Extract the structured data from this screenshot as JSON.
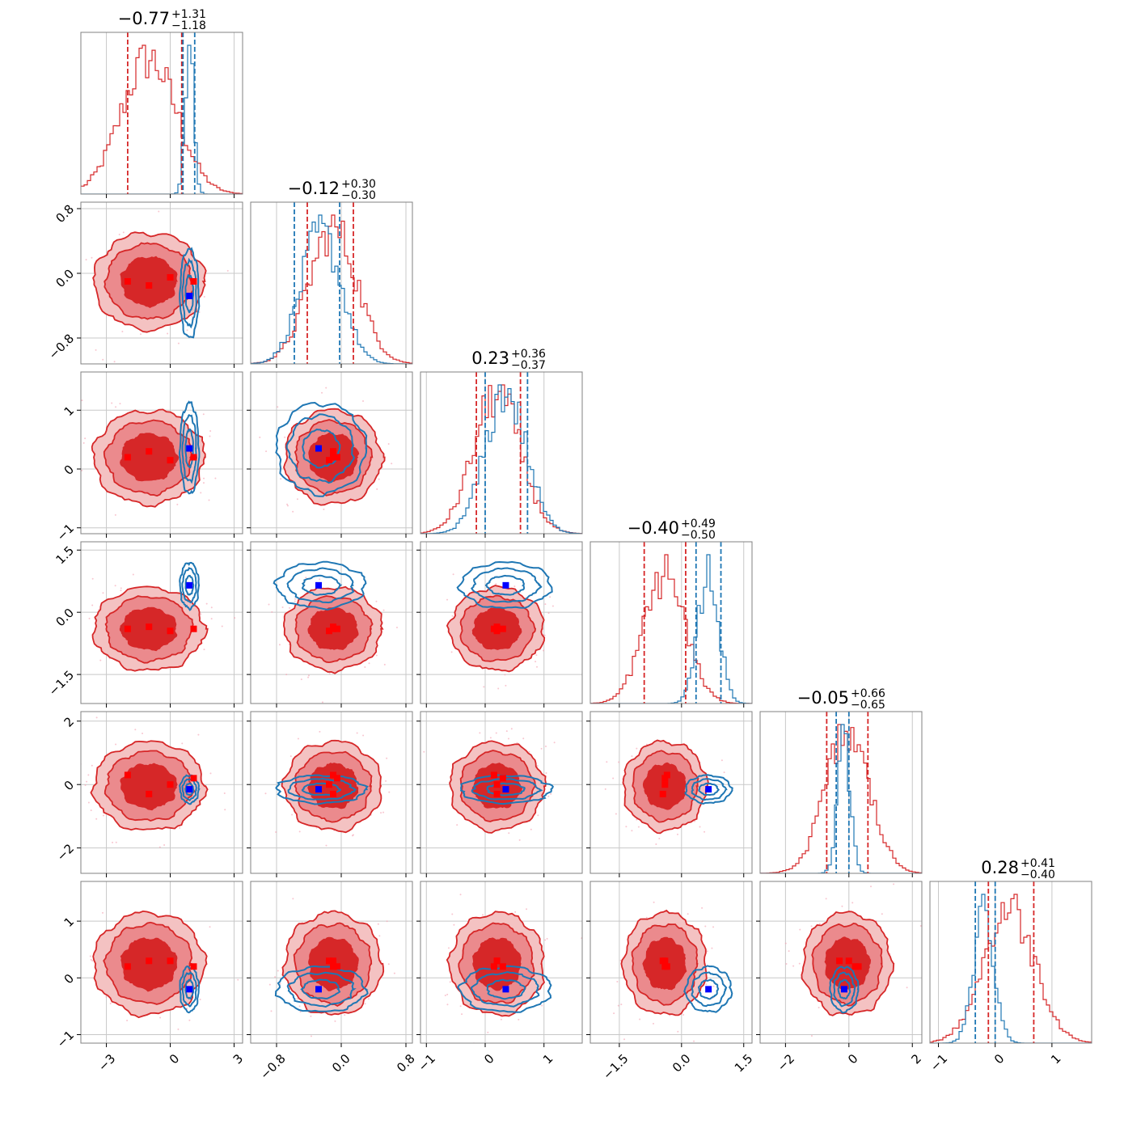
{
  "chart_data": {
    "type": "corner",
    "colors": {
      "series_a": "#d62728",
      "series_b": "#1f77b4",
      "marker_a": "#ff0000",
      "marker_b": "#0000ff"
    },
    "grid": true,
    "parameters": [
      {
        "title": "−0.77",
        "plus": "+1.31",
        "minus": "−1.18",
        "range": [
          -4.2,
          3.4
        ],
        "ticks": [
          -3,
          0,
          3
        ],
        "tick_labels": [
          "−3",
          "0",
          "3"
        ],
        "hist_a": {
          "mean": -1.0,
          "sd": 1.3
        },
        "hist_b": {
          "mean": 0.9,
          "sd": 0.2
        },
        "quantiles_a": [
          -2.0,
          0.54
        ],
        "quantiles_b": [
          0.6,
          1.15
        ],
        "marker_a": [
          -2.0,
          -1.0,
          0.0,
          1.1
        ],
        "marker_b": 0.9
      },
      {
        "title": "−0.12",
        "plus": "+0.30",
        "minus": "−0.30",
        "range": [
          -1.12,
          0.88
        ],
        "ticks": [
          -0.8,
          0.0,
          0.8
        ],
        "tick_labels": [
          "−0.8",
          "0.0",
          "0.8"
        ],
        "hist_a": {
          "mean": -0.1,
          "sd": 0.3
        },
        "hist_b": {
          "mean": -0.25,
          "sd": 0.25
        },
        "quantiles_a": [
          -0.42,
          0.15
        ],
        "quantiles_b": [
          -0.58,
          -0.02
        ],
        "marker_a": [
          -0.1,
          -0.15,
          -0.05,
          -0.1
        ],
        "marker_b": -0.28
      },
      {
        "title": "0.23",
        "plus": "+0.36",
        "minus": "−0.37",
        "range": [
          -1.1,
          1.65
        ],
        "ticks": [
          -1,
          0,
          1
        ],
        "tick_labels": [
          "−1",
          "0",
          "1"
        ],
        "hist_a": {
          "mean": 0.2,
          "sd": 0.4
        },
        "hist_b": {
          "mean": 0.35,
          "sd": 0.35
        },
        "quantiles_a": [
          -0.15,
          0.6
        ],
        "quantiles_b": [
          0.0,
          0.72
        ],
        "marker_a": [
          0.2,
          0.3,
          0.15,
          0.2
        ],
        "marker_b": 0.35
      },
      {
        "title": "−0.40",
        "plus": "+0.49",
        "minus": "−0.50",
        "range": [
          -2.2,
          1.7
        ],
        "ticks": [
          -1.5,
          0.0,
          1.5
        ],
        "tick_labels": [
          "−1.5",
          "0.0",
          "1.5"
        ],
        "hist_a": {
          "mean": -0.4,
          "sd": 0.5
        },
        "hist_b": {
          "mean": 0.65,
          "sd": 0.25
        },
        "quantiles_a": [
          -0.9,
          0.1
        ],
        "quantiles_b": [
          0.35,
          0.95
        ],
        "marker_a": [
          -0.4,
          -0.35,
          -0.45,
          -0.4
        ],
        "marker_b": 0.65
      },
      {
        "title": "−0.05",
        "plus": "+0.66",
        "minus": "−0.65",
        "range": [
          -2.8,
          2.3
        ],
        "ticks": [
          -2,
          0,
          2
        ],
        "tick_labels": [
          "−2",
          "0",
          "2"
        ],
        "hist_a": {
          "mean": -0.05,
          "sd": 0.7
        },
        "hist_b": {
          "mean": -0.15,
          "sd": 0.2
        },
        "quantiles_a": [
          -0.7,
          0.6
        ],
        "quantiles_b": [
          -0.4,
          0.0
        ],
        "marker_a": [
          0.3,
          -0.3,
          0.0,
          0.2
        ],
        "marker_b": -0.15
      },
      {
        "title": "0.28",
        "plus": "+0.41",
        "minus": "−0.40",
        "range": [
          -1.15,
          1.7
        ],
        "ticks": [
          -1,
          0,
          1
        ],
        "tick_labels": [
          "−1",
          "0",
          "1"
        ],
        "hist_a": {
          "mean": 0.25,
          "sd": 0.45
        },
        "hist_b": {
          "mean": -0.2,
          "sd": 0.18
        },
        "quantiles_a": [
          -0.12,
          0.68
        ],
        "quantiles_b": [
          -0.35,
          0.0
        ],
        "marker_a": [
          0.2,
          0.3,
          0.3,
          0.2
        ],
        "marker_b": -0.2
      }
    ]
  }
}
